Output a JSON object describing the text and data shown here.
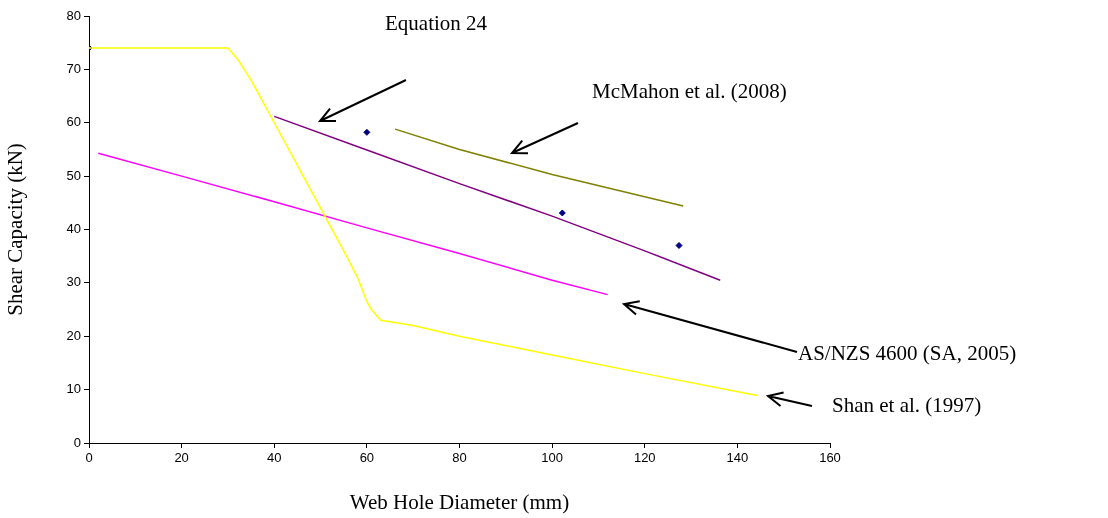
{
  "chart_data": {
    "type": "line",
    "xlabel": "Web Hole Diameter (mm)",
    "ylabel": "Shear Capacity (kN)",
    "xlim": [
      0,
      160
    ],
    "xticks": [
      0,
      20,
      40,
      60,
      80,
      100,
      120,
      140,
      160
    ],
    "ylim": [
      0,
      80
    ],
    "yticks": [
      0,
      10,
      20,
      30,
      40,
      50,
      60,
      70,
      80
    ],
    "grid": false,
    "legend": false,
    "marker": "none",
    "line_style": "solid",
    "series": [
      {
        "color": "#ffff00",
        "x": [
          0,
          29,
          30,
          32,
          35,
          40,
          45,
          50,
          55,
          58,
          60,
          61,
          63,
          70,
          80,
          100,
          120,
          144.3
        ],
        "values": [
          74,
          74,
          74,
          72,
          68,
          60,
          52,
          44,
          36,
          31,
          26.5,
          25,
          23,
          22,
          20,
          16.5,
          13,
          8.9
        ]
      },
      {
        "color": "#ff00ff",
        "x": [
          2,
          20,
          40,
          60,
          80,
          100,
          112
        ],
        "values": [
          54.3,
          50,
          45.2,
          40.3,
          35.5,
          30.5,
          27.8
        ]
      },
      {
        "color": "#800080",
        "x": [
          40,
          60,
          80,
          100,
          120,
          136.3
        ],
        "values": [
          61.2,
          54.9,
          48.6,
          42.5,
          36,
          30.5
        ]
      },
      {
        "color": "#808000",
        "x": [
          66.1,
          80,
          100,
          128.3
        ],
        "values": [
          58.8,
          55,
          50.3,
          44.4
        ]
      },
      {
        "type": "scatter",
        "color": "#000080",
        "marker": "diamond",
        "x": [
          0,
          60,
          102.2,
          127.4
        ],
        "values": [
          74,
          58.2,
          43.1,
          37
        ]
      }
    ],
    "annotations": [
      "Equation 24",
      "McMahon et al. (2008)",
      "AS/NZS 4600 (SA, 2005)",
      "Shan et al. (1997)"
    ]
  }
}
